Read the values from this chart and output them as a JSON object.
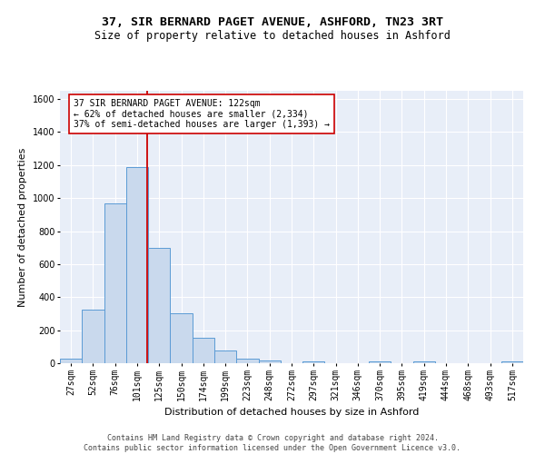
{
  "title1": "37, SIR BERNARD PAGET AVENUE, ASHFORD, TN23 3RT",
  "title2": "Size of property relative to detached houses in Ashford",
  "xlabel": "Distribution of detached houses by size in Ashford",
  "ylabel": "Number of detached properties",
  "categories": [
    "27sqm",
    "52sqm",
    "76sqm",
    "101sqm",
    "125sqm",
    "150sqm",
    "174sqm",
    "199sqm",
    "223sqm",
    "248sqm",
    "272sqm",
    "297sqm",
    "321sqm",
    "346sqm",
    "370sqm",
    "395sqm",
    "419sqm",
    "444sqm",
    "468sqm",
    "493sqm",
    "517sqm"
  ],
  "values": [
    25,
    325,
    970,
    1190,
    700,
    305,
    155,
    75,
    25,
    18,
    0,
    12,
    0,
    0,
    12,
    0,
    12,
    0,
    0,
    0,
    12
  ],
  "bar_color": "#c9d9ed",
  "bar_edge_color": "#5b9bd5",
  "marker_color": "#cc0000",
  "annotation_text": "37 SIR BERNARD PAGET AVENUE: 122sqm\n← 62% of detached houses are smaller (2,334)\n37% of semi-detached houses are larger (1,393) →",
  "annotation_box_color": "#ffffff",
  "annotation_box_edge": "#cc0000",
  "ylim": [
    0,
    1650
  ],
  "yticks": [
    0,
    200,
    400,
    600,
    800,
    1000,
    1200,
    1400,
    1600
  ],
  "background_color": "#e8eef8",
  "footer": "Contains HM Land Registry data © Crown copyright and database right 2024.\nContains public sector information licensed under the Open Government Licence v3.0.",
  "title_fontsize": 9.5,
  "subtitle_fontsize": 8.5,
  "axis_label_fontsize": 8,
  "tick_fontsize": 7,
  "footer_fontsize": 6,
  "annotation_fontsize": 7
}
